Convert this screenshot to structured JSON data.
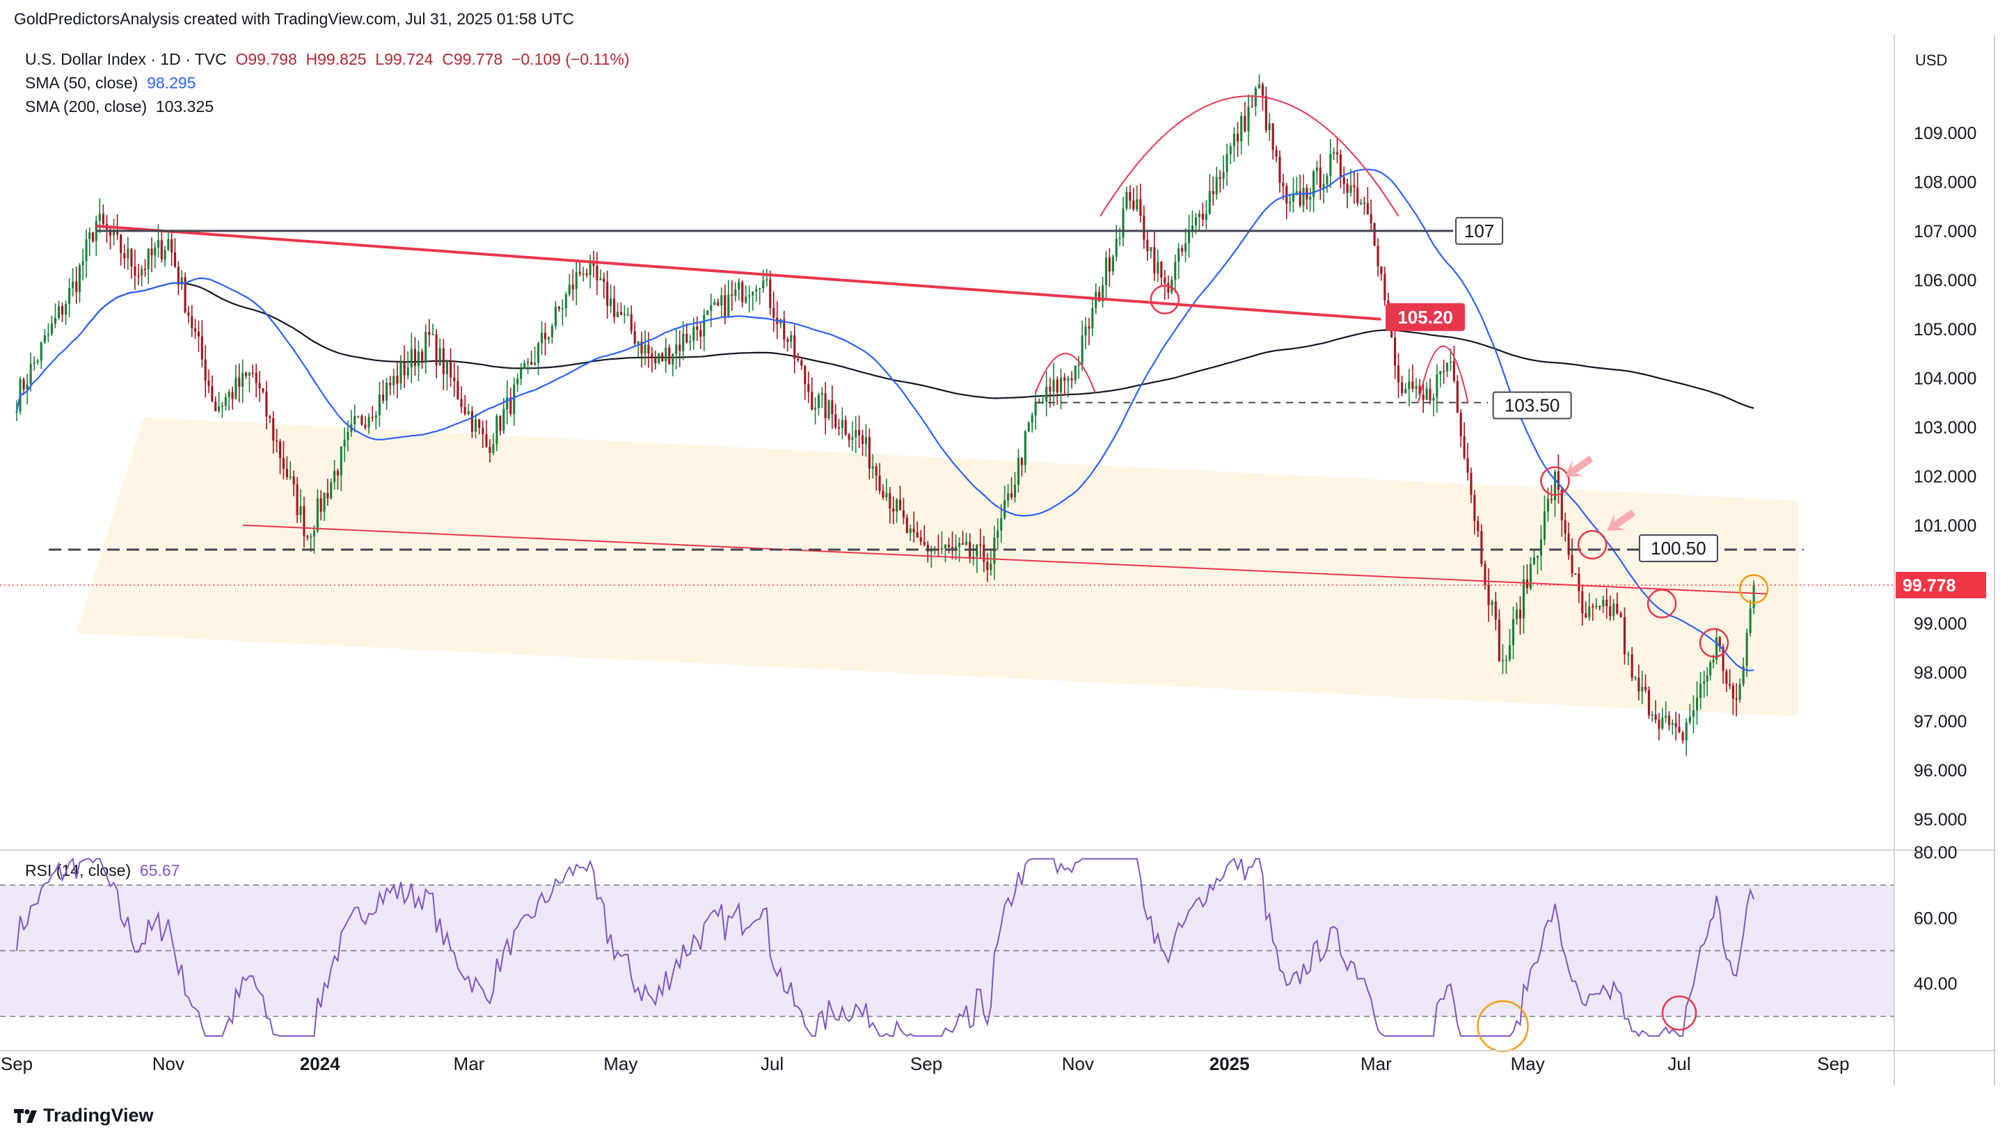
{
  "header": {
    "author": "GoldPredictorsAnalysis",
    "created_with": "created with TradingView.com,",
    "timestamp": "Jul 31, 2025 01:58 UTC"
  },
  "legend": {
    "symbol": "U.S. Dollar Index · 1D · TVC",
    "open": "O99.798",
    "high": "H99.825",
    "low": "L99.724",
    "close": "C99.778",
    "change": "−0.109 (−0.11%)",
    "sma50_label": "SMA (50, close)",
    "sma50_value": "98.295",
    "sma200_label": "SMA (200, close)",
    "sma200_value": "103.325",
    "rsi_label": "RSI (14, close)",
    "rsi_value": "65.67"
  },
  "currency": "USD",
  "colors": {
    "up": "#1a7f37",
    "down": "#a3141d",
    "sma50": "#2962ff",
    "sma200": "#131722",
    "resistance": "#e8364d",
    "channel_fill": "#fff3e0",
    "rsi_line": "#7e57c2",
    "rsi_band": "#ede7f6",
    "current_price": "#f23645"
  },
  "footer": {
    "brand": "TradingView"
  },
  "chart_data": {
    "type": "candlestick",
    "title": "",
    "x_axis": {
      "labels": [
        "Sep",
        "Nov",
        "2024",
        "Mar",
        "May",
        "Jul",
        "Sep",
        "Nov",
        "2025",
        "Mar",
        "May",
        "Jul",
        "Sep"
      ],
      "bold": [
        "2024",
        "2025"
      ],
      "start": "2023-09-01",
      "end": "2025-09-30"
    },
    "price_axis": {
      "ticks": [
        "109.000",
        "108.000",
        "107.000",
        "106.000",
        "105.000",
        "104.000",
        "103.000",
        "102.000",
        "101.000",
        "99.000",
        "98.000",
        "97.000",
        "96.000",
        "95.000"
      ],
      "ylim": [
        94.4,
        111.0
      ]
    },
    "rsi_axis": {
      "ticks": [
        "80.00",
        "60.00",
        "40.00"
      ],
      "ylim": [
        20,
        80
      ],
      "bands": [
        30,
        50,
        70
      ]
    },
    "price_keypoints": [
      [
        "2023-09-01",
        103.6
      ],
      [
        "2023-09-25",
        106.0
      ],
      [
        "2023-10-03",
        107.2
      ],
      [
        "2023-10-20",
        106.2
      ],
      [
        "2023-11-01",
        106.8
      ],
      [
        "2023-11-20",
        103.4
      ],
      [
        "2023-12-05",
        104.1
      ],
      [
        "2023-12-27",
        100.8
      ],
      [
        "2024-01-15",
        103.0
      ],
      [
        "2024-02-14",
        104.8
      ],
      [
        "2024-03-08",
        102.6
      ],
      [
        "2024-04-16",
        106.3
      ],
      [
        "2024-05-15",
        104.3
      ],
      [
        "2024-06-26",
        106.1
      ],
      [
        "2024-07-17",
        103.6
      ],
      [
        "2024-08-05",
        102.8
      ],
      [
        "2024-08-27",
        100.6
      ],
      [
        "2024-09-27",
        100.3
      ],
      [
        "2024-10-15",
        103.4
      ],
      [
        "2024-10-31",
        104.2
      ],
      [
        "2024-11-22",
        107.8
      ],
      [
        "2024-12-06",
        105.8
      ],
      [
        "2024-12-31",
        108.5
      ],
      [
        "2025-01-13",
        109.9
      ],
      [
        "2025-01-24",
        107.4
      ],
      [
        "2025-02-12",
        108.4
      ],
      [
        "2025-02-27",
        107.4
      ],
      [
        "2025-03-10",
        103.8
      ],
      [
        "2025-03-20",
        103.5
      ],
      [
        "2025-03-31",
        104.4
      ],
      [
        "2025-04-11",
        100.8
      ],
      [
        "2025-04-21",
        98.1
      ],
      [
        "2025-05-12",
        101.9
      ],
      [
        "2025-05-23",
        99.1
      ],
      [
        "2025-06-06",
        99.3
      ],
      [
        "2025-06-12",
        97.8
      ],
      [
        "2025-07-01",
        96.6
      ],
      [
        "2025-07-11",
        97.8
      ],
      [
        "2025-07-16",
        98.6
      ],
      [
        "2025-07-24",
        97.2
      ],
      [
        "2025-07-31",
        99.78
      ]
    ],
    "series": [
      {
        "name": "SMA (50, close)",
        "value": 98.295
      },
      {
        "name": "SMA (200, close)",
        "value": 103.325
      },
      {
        "name": "RSI (14, close)",
        "value": 65.67
      }
    ],
    "levels": [
      {
        "label": "107",
        "value": 107.0
      },
      {
        "label": "105.20",
        "value": 105.2
      },
      {
        "label": "103.50",
        "value": 103.5
      },
      {
        "label": "100.50",
        "value": 100.5
      },
      {
        "label": "99.778",
        "value": 99.778
      }
    ],
    "trendlines": [
      {
        "from": [
          "2023-10-03",
          107.1
        ],
        "to": [
          "2025-03-03",
          105.2
        ]
      },
      {
        "from": [
          "2023-12-01",
          101.0
        ],
        "to": [
          "2025-08-05",
          99.6
        ]
      }
    ],
    "channel": {
      "upper": [
        [
          "2023-10-22",
          103.2
        ],
        [
          "2025-08-18",
          101.5
        ]
      ],
      "lower": [
        [
          "2023-09-25",
          98.8
        ],
        [
          "2025-08-18",
          97.1
        ]
      ]
    },
    "grid": false,
    "legend_position": "top-left"
  }
}
